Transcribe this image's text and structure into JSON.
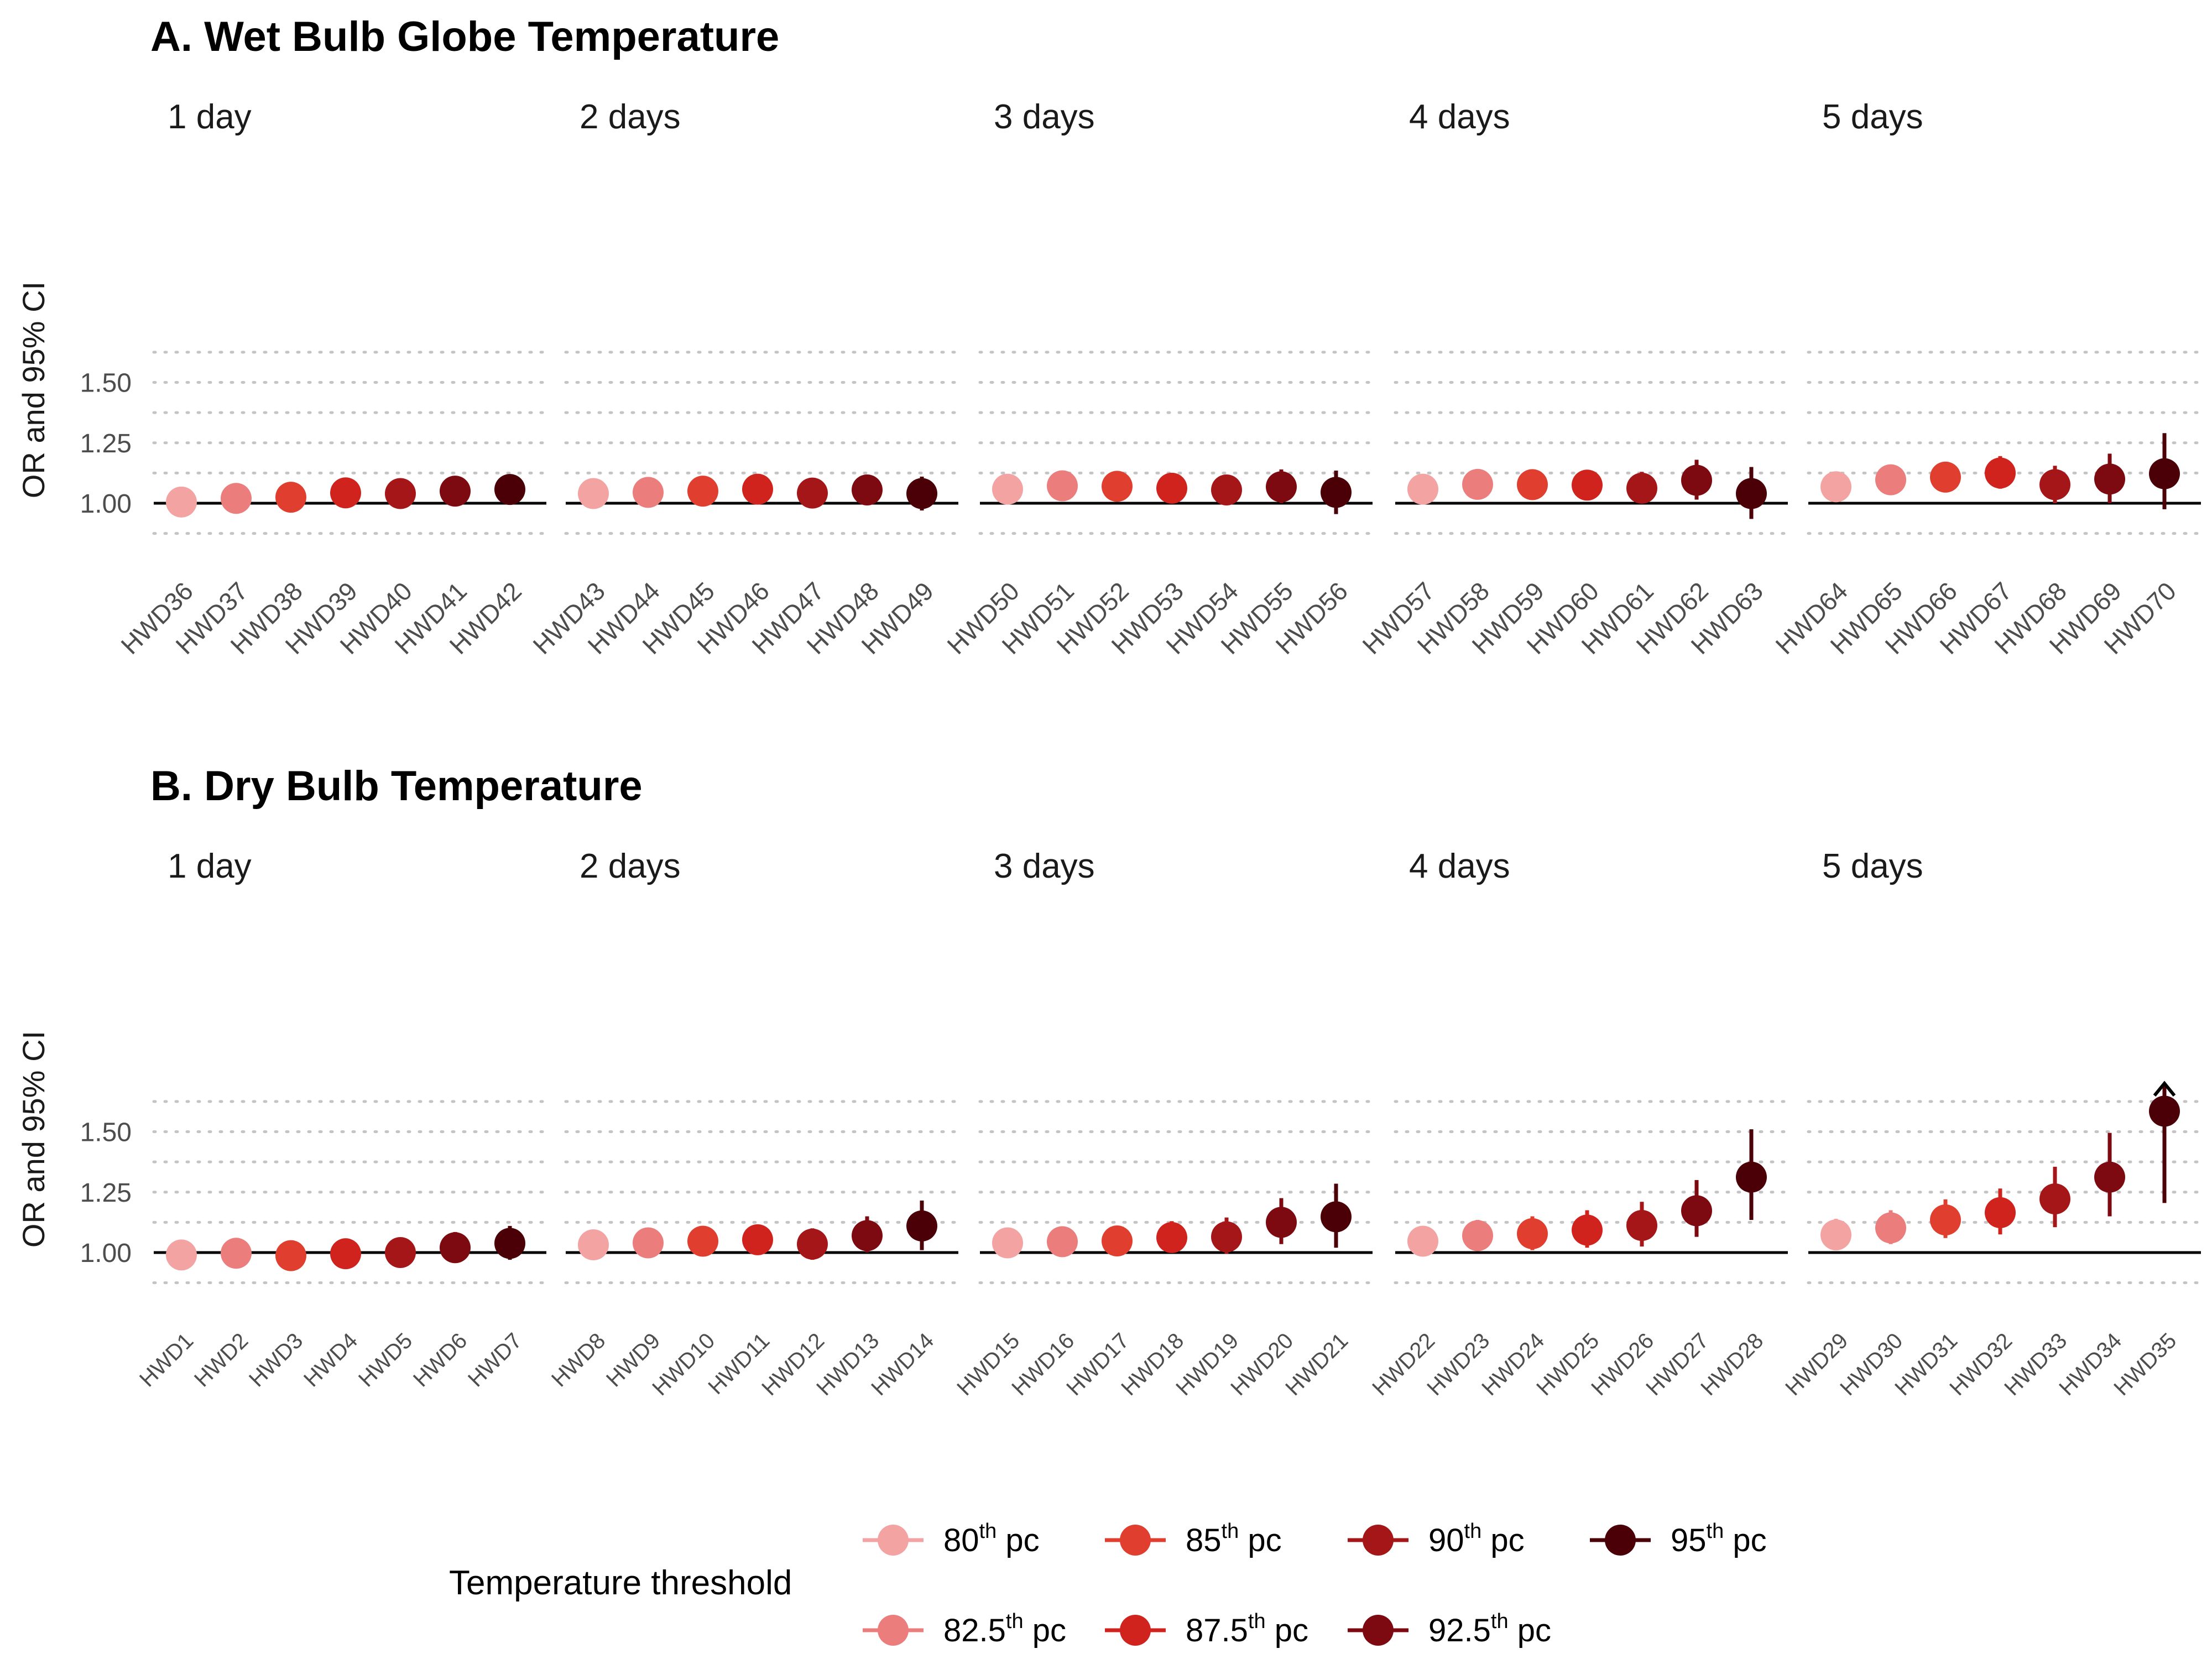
{
  "chart_data": [
    {
      "type": "scatter",
      "title": "A. Wet Bulb Globe Temperature",
      "ylabel": "OR and 95% CI",
      "ylim": [
        0.88,
        1.7
      ],
      "yticks": [
        "1.00",
        "1.25",
        "1.50"
      ],
      "reference_line": 1.0,
      "grid": "horizontal dotted",
      "facets": [
        {
          "label": "1 day",
          "categories": [
            "HWD36",
            "HWD37",
            "HWD38",
            "HWD39",
            "HWD40",
            "HWD41",
            "HWD42"
          ],
          "estimate": [
            1.005,
            1.02,
            1.025,
            1.043,
            1.04,
            1.05,
            1.057
          ],
          "lower": [
            0.98,
            0.985,
            0.99,
            1.01,
            1.005,
            1.01,
            1.0
          ],
          "upper": [
            1.035,
            1.055,
            1.065,
            1.085,
            1.085,
            1.1,
            1.115
          ]
        },
        {
          "label": "2 days",
          "categories": [
            "HWD43",
            "HWD44",
            "HWD45",
            "HWD46",
            "HWD47",
            "HWD48",
            "HWD49"
          ],
          "estimate": [
            1.04,
            1.045,
            1.05,
            1.058,
            1.042,
            1.055,
            1.04
          ],
          "lower": [
            1.005,
            1.005,
            1.01,
            1.015,
            1.0,
            1.0,
            0.97
          ],
          "upper": [
            1.08,
            1.085,
            1.095,
            1.105,
            1.095,
            1.115,
            1.11
          ]
        },
        {
          "label": "3 days",
          "categories": [
            "HWD50",
            "HWD51",
            "HWD52",
            "HWD53",
            "HWD54",
            "HWD55",
            "HWD56"
          ],
          "estimate": [
            1.058,
            1.072,
            1.07,
            1.062,
            1.055,
            1.068,
            1.045
          ],
          "lower": [
            1.015,
            1.025,
            1.02,
            1.01,
            0.995,
            1.0,
            0.955
          ],
          "upper": [
            1.105,
            1.12,
            1.12,
            1.115,
            1.115,
            1.14,
            1.135
          ]
        },
        {
          "label": "4 days",
          "categories": [
            "HWD57",
            "HWD58",
            "HWD59",
            "HWD60",
            "HWD61",
            "HWD62",
            "HWD63"
          ],
          "estimate": [
            1.058,
            1.078,
            1.077,
            1.075,
            1.062,
            1.095,
            1.04
          ],
          "lower": [
            1.015,
            1.03,
            1.025,
            1.02,
            1.0,
            1.015,
            0.935
          ],
          "upper": [
            1.1,
            1.125,
            1.13,
            1.135,
            1.13,
            1.18,
            1.15
          ]
        },
        {
          "label": "5 days",
          "categories": [
            "HWD64",
            "HWD65",
            "HWD66",
            "HWD67",
            "HWD68",
            "HWD69",
            "HWD70"
          ],
          "estimate": [
            1.068,
            1.097,
            1.108,
            1.125,
            1.077,
            1.1,
            1.122
          ],
          "lower": [
            1.025,
            1.045,
            1.05,
            1.06,
            1.0,
            1.0,
            0.975
          ],
          "upper": [
            1.11,
            1.15,
            1.165,
            1.195,
            1.155,
            1.205,
            1.29
          ]
        }
      ]
    },
    {
      "type": "scatter",
      "title": "B. Dry Bulb Temperature",
      "ylabel": "OR and 95% CI",
      "ylim": [
        0.88,
        1.7
      ],
      "yticks": [
        "1.00",
        "1.25",
        "1.50"
      ],
      "reference_line": 1.0,
      "grid": "horizontal dotted",
      "facets": [
        {
          "label": "1 day",
          "categories": [
            "HWD1",
            "HWD2",
            "HWD3",
            "HWD4",
            "HWD5",
            "HWD6",
            "HWD7"
          ],
          "estimate": [
            0.99,
            0.997,
            0.987,
            0.995,
            1.0,
            1.02,
            1.038
          ],
          "lower": [
            0.955,
            0.955,
            0.945,
            0.95,
            0.95,
            0.96,
            0.97
          ],
          "upper": [
            1.03,
            1.04,
            1.035,
            1.045,
            1.055,
            1.085,
            1.11
          ]
        },
        {
          "label": "2 days",
          "categories": [
            "HWD8",
            "HWD9",
            "HWD10",
            "HWD11",
            "HWD12",
            "HWD13",
            "HWD14"
          ],
          "estimate": [
            1.032,
            1.04,
            1.047,
            1.053,
            1.035,
            1.07,
            1.11
          ],
          "lower": [
            0.99,
            0.995,
            0.995,
            1.0,
            0.97,
            1.0,
            1.01
          ],
          "upper": [
            1.08,
            1.09,
            1.1,
            1.115,
            1.1,
            1.15,
            1.215
          ]
        },
        {
          "label": "3 days",
          "categories": [
            "HWD15",
            "HWD16",
            "HWD17",
            "HWD18",
            "HWD19",
            "HWD20",
            "HWD21"
          ],
          "estimate": [
            1.04,
            1.045,
            1.048,
            1.062,
            1.065,
            1.125,
            1.148
          ],
          "lower": [
            0.995,
            0.995,
            0.995,
            1.0,
            0.995,
            1.035,
            1.02
          ],
          "upper": [
            1.09,
            1.1,
            1.11,
            1.13,
            1.145,
            1.225,
            1.285
          ]
        },
        {
          "label": "4 days",
          "categories": [
            "HWD22",
            "HWD23",
            "HWD24",
            "HWD25",
            "HWD26",
            "HWD27",
            "HWD28"
          ],
          "estimate": [
            1.047,
            1.07,
            1.078,
            1.093,
            1.112,
            1.173,
            1.312
          ],
          "lower": [
            0.995,
            1.01,
            1.01,
            1.02,
            1.025,
            1.065,
            1.135
          ],
          "upper": [
            1.1,
            1.135,
            1.15,
            1.175,
            1.21,
            1.3,
            1.51
          ]
        },
        {
          "label": "5 days",
          "categories": [
            "HWD29",
            "HWD30",
            "HWD31",
            "HWD32",
            "HWD33",
            "HWD34",
            "HWD35"
          ],
          "estimate": [
            1.073,
            1.102,
            1.135,
            1.165,
            1.222,
            1.312,
            1.585
          ],
          "lower": [
            1.01,
            1.035,
            1.06,
            1.075,
            1.105,
            1.15,
            1.205
          ],
          "upper": [
            1.14,
            1.175,
            1.22,
            1.265,
            1.355,
            1.495,
            1.7
          ],
          "upper_truncated": [
            false,
            false,
            false,
            false,
            false,
            false,
            true
          ]
        }
      ]
    }
  ],
  "legend": {
    "title": "Temperature threshold",
    "placement": "bottom",
    "items": [
      {
        "value": "80",
        "sup": "th",
        "suffix": " pc",
        "color": "#F4A3A3"
      },
      {
        "value": "82.5",
        "sup": "th",
        "suffix": " pc",
        "color": "#EC7D7D"
      },
      {
        "value": "85",
        "sup": "th",
        "suffix": " pc",
        "color": "#E03E2F"
      },
      {
        "value": "87.5",
        "sup": "th",
        "suffix": " pc",
        "color": "#D0231E"
      },
      {
        "value": "90",
        "sup": "th",
        "suffix": " pc",
        "color": "#A51618"
      },
      {
        "value": "92.5",
        "sup": "th",
        "suffix": " pc",
        "color": "#7D0A10"
      },
      {
        "value": "95",
        "sup": "th",
        "suffix": " pc",
        "color": "#4A0006"
      }
    ]
  }
}
